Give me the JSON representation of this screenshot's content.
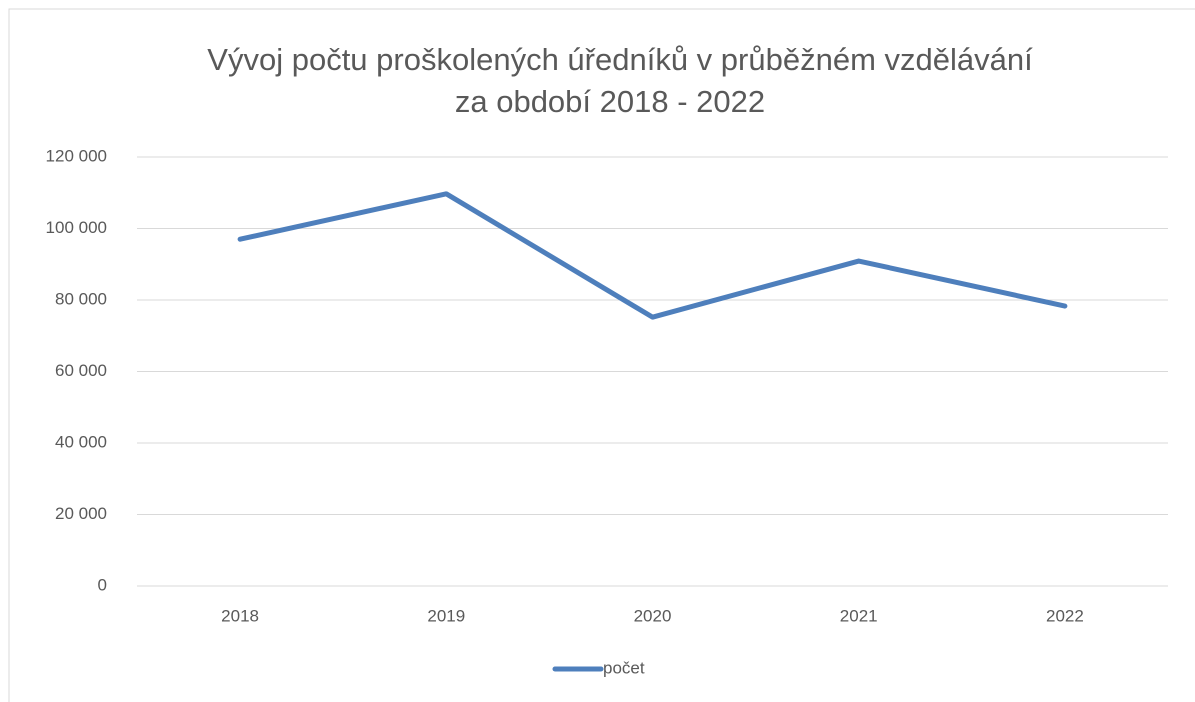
{
  "chart_data": {
    "type": "line",
    "title": [
      "Vývoj počtu proškolených úředníků  v průběžném vzdělávání",
      "za období 2018 - 2022"
    ],
    "categories": [
      "2018",
      "2019",
      "2020",
      "2021",
      "2022"
    ],
    "series": [
      {
        "name": "počet",
        "color": "#4e7fbc",
        "values": [
          97000,
          109700,
          75200,
          90900,
          78300
        ]
      }
    ],
    "ylim": [
      0,
      120000
    ],
    "yticks": [
      0,
      {
        "value": 20000,
        "label": "20 000"
      },
      {
        "value": 40000,
        "label": "40 000"
      },
      {
        "value": 60000,
        "label": "60 000"
      },
      {
        "value": 80000,
        "label": "80 000"
      },
      {
        "value": 100000,
        "label": "100 000"
      },
      {
        "value": 120000,
        "label": "120 000"
      }
    ],
    "grid": true,
    "legend": "bottom"
  }
}
